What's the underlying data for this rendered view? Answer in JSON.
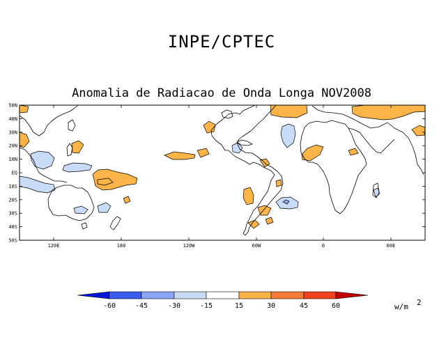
{
  "header": {
    "organization": "INPE/CPTEC",
    "title": "Anomalia de Radiacao de Onda Longa NOV2008"
  },
  "map": {
    "lat_ticks": [
      "50N",
      "40N",
      "30N",
      "20N",
      "10N",
      "EQ",
      "10S",
      "20S",
      "30S",
      "40S",
      "50S"
    ],
    "lon_ticks": [
      "120E",
      "180",
      "120W",
      "60W",
      "0",
      "60E"
    ]
  },
  "colorbar": {
    "labels": [
      "-60",
      "-45",
      "-30",
      "-15",
      "15",
      "30",
      "45",
      "60"
    ],
    "colors": [
      "#0a14d8",
      "#3a5cf0",
      "#8aa6f4",
      "#c8dcf8",
      "#ffffff",
      "#fbb448",
      "#f77a38",
      "#f0421e",
      "#c00000"
    ],
    "units": "w/m",
    "units_exponent": "2"
  }
}
